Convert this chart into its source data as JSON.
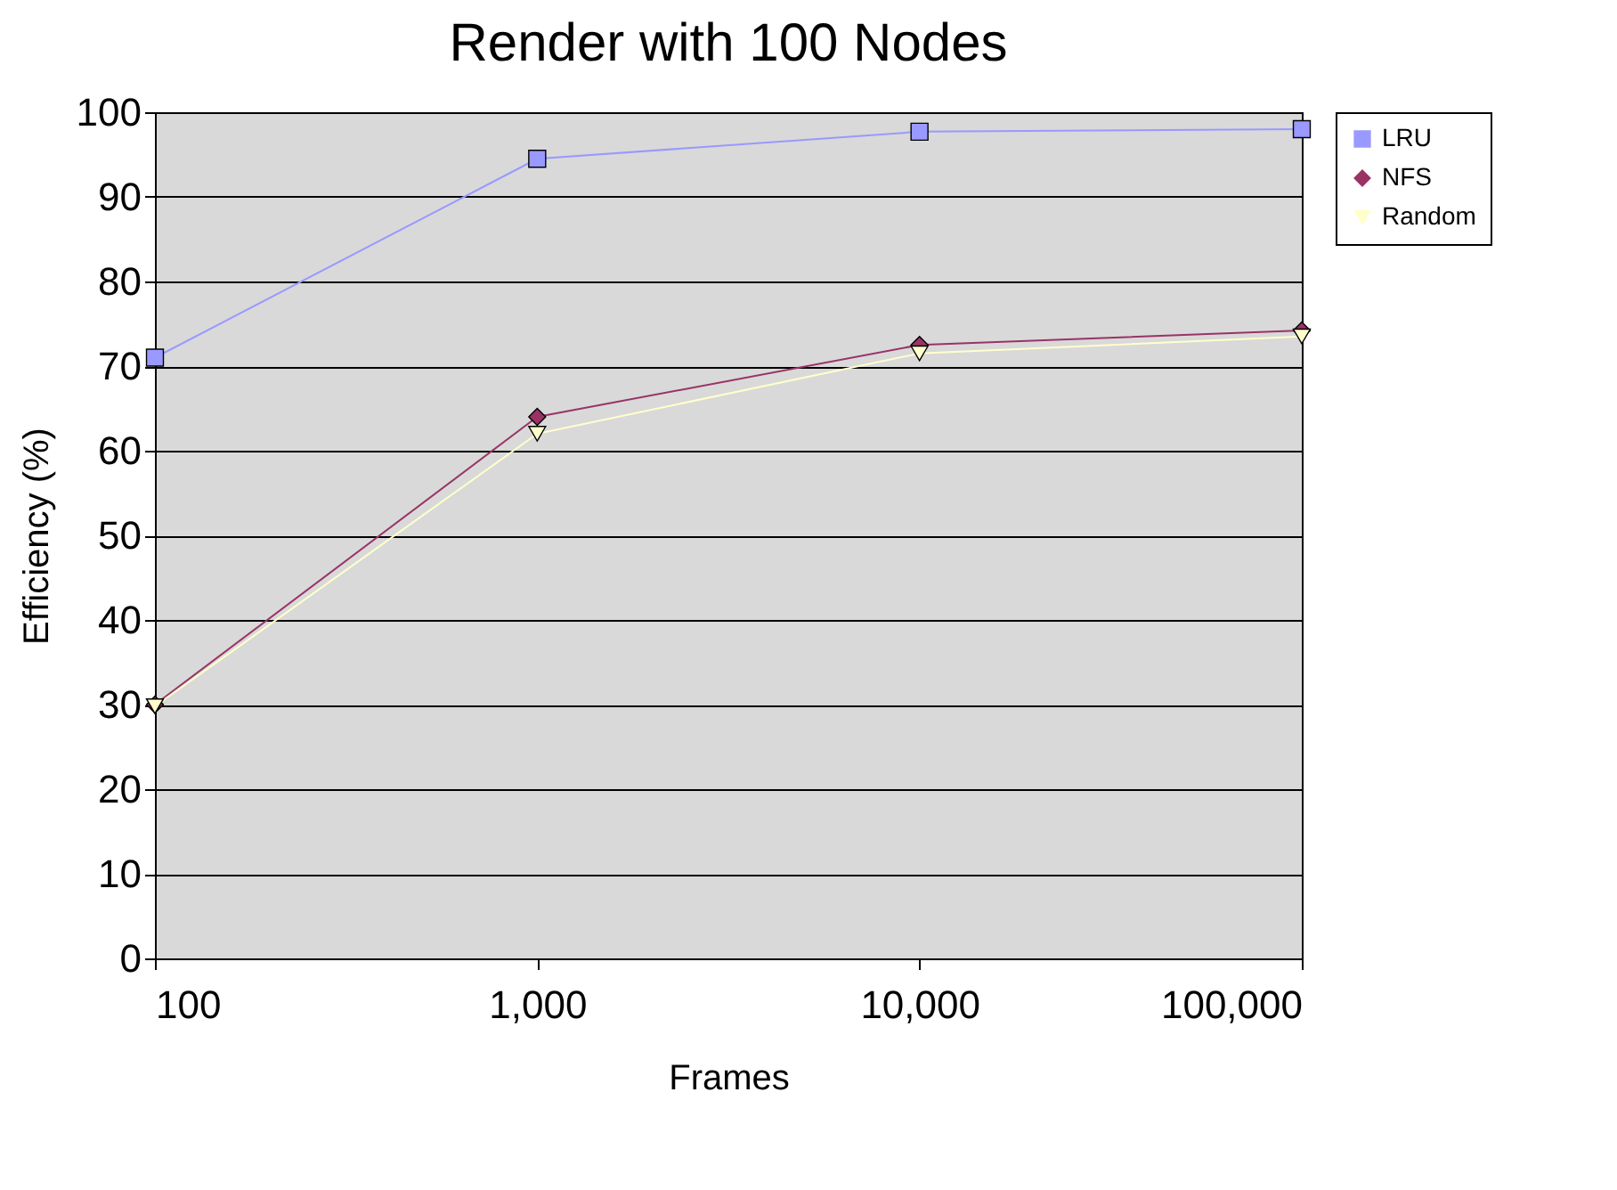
{
  "chart_data": {
    "type": "line",
    "title": "Render with 100 Nodes",
    "xlabel": "Frames",
    "ylabel": "Efficiency (%)",
    "x": [
      100,
      1000,
      10000,
      100000
    ],
    "log": "x",
    "xlim": [
      100,
      100000
    ],
    "xticks": [
      100,
      {
        "value": 1000,
        "label": "1,000"
      },
      {
        "value": 10000,
        "label": "10,000"
      },
      {
        "value": 100000,
        "label": "100,000"
      }
    ],
    "ylim": [
      0,
      100
    ],
    "yticks": [
      0,
      10,
      20,
      30,
      40,
      50,
      60,
      70,
      80,
      90,
      100
    ],
    "grid": "y",
    "legend": "right",
    "series": [
      {
        "name": "LRU",
        "color": "#9999ff",
        "marker": "square",
        "values": [
          71,
          94.5,
          97.7,
          98
        ]
      },
      {
        "name": "NFS",
        "color": "#993366",
        "marker": "diamond",
        "values": [
          30,
          64,
          72.5,
          74.2
        ]
      },
      {
        "name": "Random",
        "color": "#ffffcc",
        "marker": "triangle",
        "values": [
          29.8,
          62,
          71.5,
          73.5
        ]
      }
    ]
  }
}
